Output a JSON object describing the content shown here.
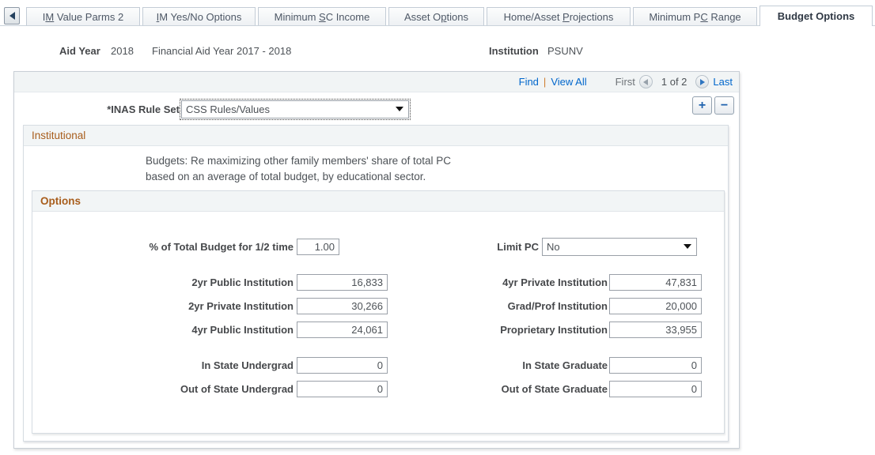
{
  "tabs": [
    {
      "pre": "I",
      "key": "M",
      "post": " Value Parms 2"
    },
    {
      "pre": "",
      "key": "I",
      "post": "M Yes/No Options"
    },
    {
      "pre": "Minimum ",
      "key": "S",
      "post": "C Income"
    },
    {
      "pre": "Asset O",
      "key": "p",
      "post": "tions"
    },
    {
      "pre": "Home/Asset ",
      "key": "P",
      "post": "rojections"
    },
    {
      "pre": "Minimum P",
      "key": "C",
      "post": " Range"
    },
    {
      "pre": "Budget Options",
      "key": "",
      "post": ""
    }
  ],
  "header": {
    "aid_year_label": "Aid Year",
    "aid_year_value": "2018",
    "aid_year_desc": "Financial Aid Year 2017 - 2018",
    "institution_label": "Institution",
    "institution_value": "PSUNV"
  },
  "nav": {
    "find": "Find",
    "separator": "|",
    "view_all": "View All",
    "first": "First",
    "position": "1 of 2",
    "last": "Last"
  },
  "rule_set": {
    "label": "*INAS Rule Set",
    "value": "CSS Rules/Values"
  },
  "row_actions": {
    "add": "+",
    "remove": "−"
  },
  "institutional": {
    "title": "Institutional",
    "description_line1": "Budgets: Re maximizing other family members' share of total PC",
    "description_line2": "based on an average of total budget, by educational sector."
  },
  "options": {
    "title": "Options",
    "pct_label": "% of Total Budget for 1/2 time",
    "pct_value": "1.00",
    "limit_pc_label": "Limit PC",
    "limit_pc_value": "No",
    "rows": [
      {
        "l_label": "2yr Public Institution",
        "l_value": "16,833",
        "r_label": "4yr Private Institution",
        "r_value": "47,831"
      },
      {
        "l_label": "2yr Private Institution",
        "l_value": "30,266",
        "r_label": "Grad/Prof Institution",
        "r_value": "20,000"
      },
      {
        "l_label": "4yr Public Institution",
        "l_value": "24,061",
        "r_label": "Proprietary Institution",
        "r_value": "33,955"
      }
    ],
    "rows2": [
      {
        "l_label": "In State Undergrad",
        "l_value": "0",
        "r_label": "In State Graduate",
        "r_value": "0"
      },
      {
        "l_label": "Out of State Undergrad",
        "l_value": "0",
        "r_label": "Out of State Graduate",
        "r_value": "0"
      }
    ]
  },
  "colors": {
    "accent_orange": "#a85d1c",
    "link_blue": "#0066cc"
  }
}
